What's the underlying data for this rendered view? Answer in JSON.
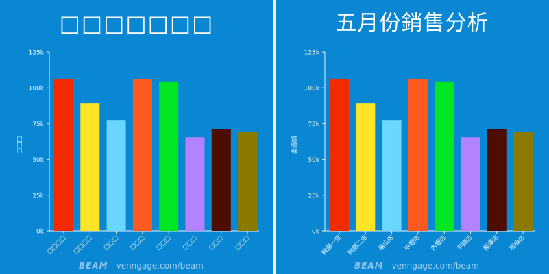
{
  "left_chart": {
    "title": "□□□□□□□",
    "ylabel": "□□□",
    "watermark_brand": "BEAM",
    "watermark_url": "venngage.com/beam"
  },
  "right_chart": {
    "title": "五月份銷售分析",
    "ylabel": "業績額",
    "watermark_brand": "BEAM",
    "watermark_url": "venngage.com/beam"
  },
  "chart_data": [
    {
      "type": "bar",
      "title": "□□□□□□□",
      "xlabel": "",
      "ylabel": "□□□",
      "categories": [
        "□□□□",
        "□□□□",
        "□□□",
        "□□□",
        "□□□",
        "□□□",
        "□□□",
        "□□□"
      ],
      "values": [
        106000,
        89000,
        77500,
        106000,
        104500,
        65500,
        71000,
        69000
      ],
      "colors": [
        "#f22a00",
        "#ffe526",
        "#6ad7ff",
        "#ff5a1f",
        "#00e622",
        "#b383ff",
        "#4d0d00",
        "#8c7a00"
      ],
      "ylim": [
        0,
        125000
      ],
      "yticks": [
        "0k",
        "25k",
        "50k",
        "75k",
        "100k",
        "125k"
      ],
      "grid": false,
      "legend": "none"
    },
    {
      "type": "bar",
      "title": "五月份銷售分析",
      "xlabel": "",
      "ylabel": "業績額",
      "categories": [
        "桃園一店",
        "桃園二店",
        "龜山店",
        "中壢店",
        "內壢店",
        "平鎮店",
        "龍潭店",
        "楊梅店"
      ],
      "values": [
        106000,
        89000,
        77500,
        106000,
        104500,
        65500,
        71000,
        69000
      ],
      "colors": [
        "#f22a00",
        "#ffe526",
        "#6ad7ff",
        "#ff5a1f",
        "#00e622",
        "#b383ff",
        "#4d0d00",
        "#8c7a00"
      ],
      "ylim": [
        0,
        125000
      ],
      "yticks": [
        "0k",
        "25k",
        "50k",
        "75k",
        "100k",
        "125k"
      ],
      "grid": false,
      "legend": "none"
    }
  ]
}
